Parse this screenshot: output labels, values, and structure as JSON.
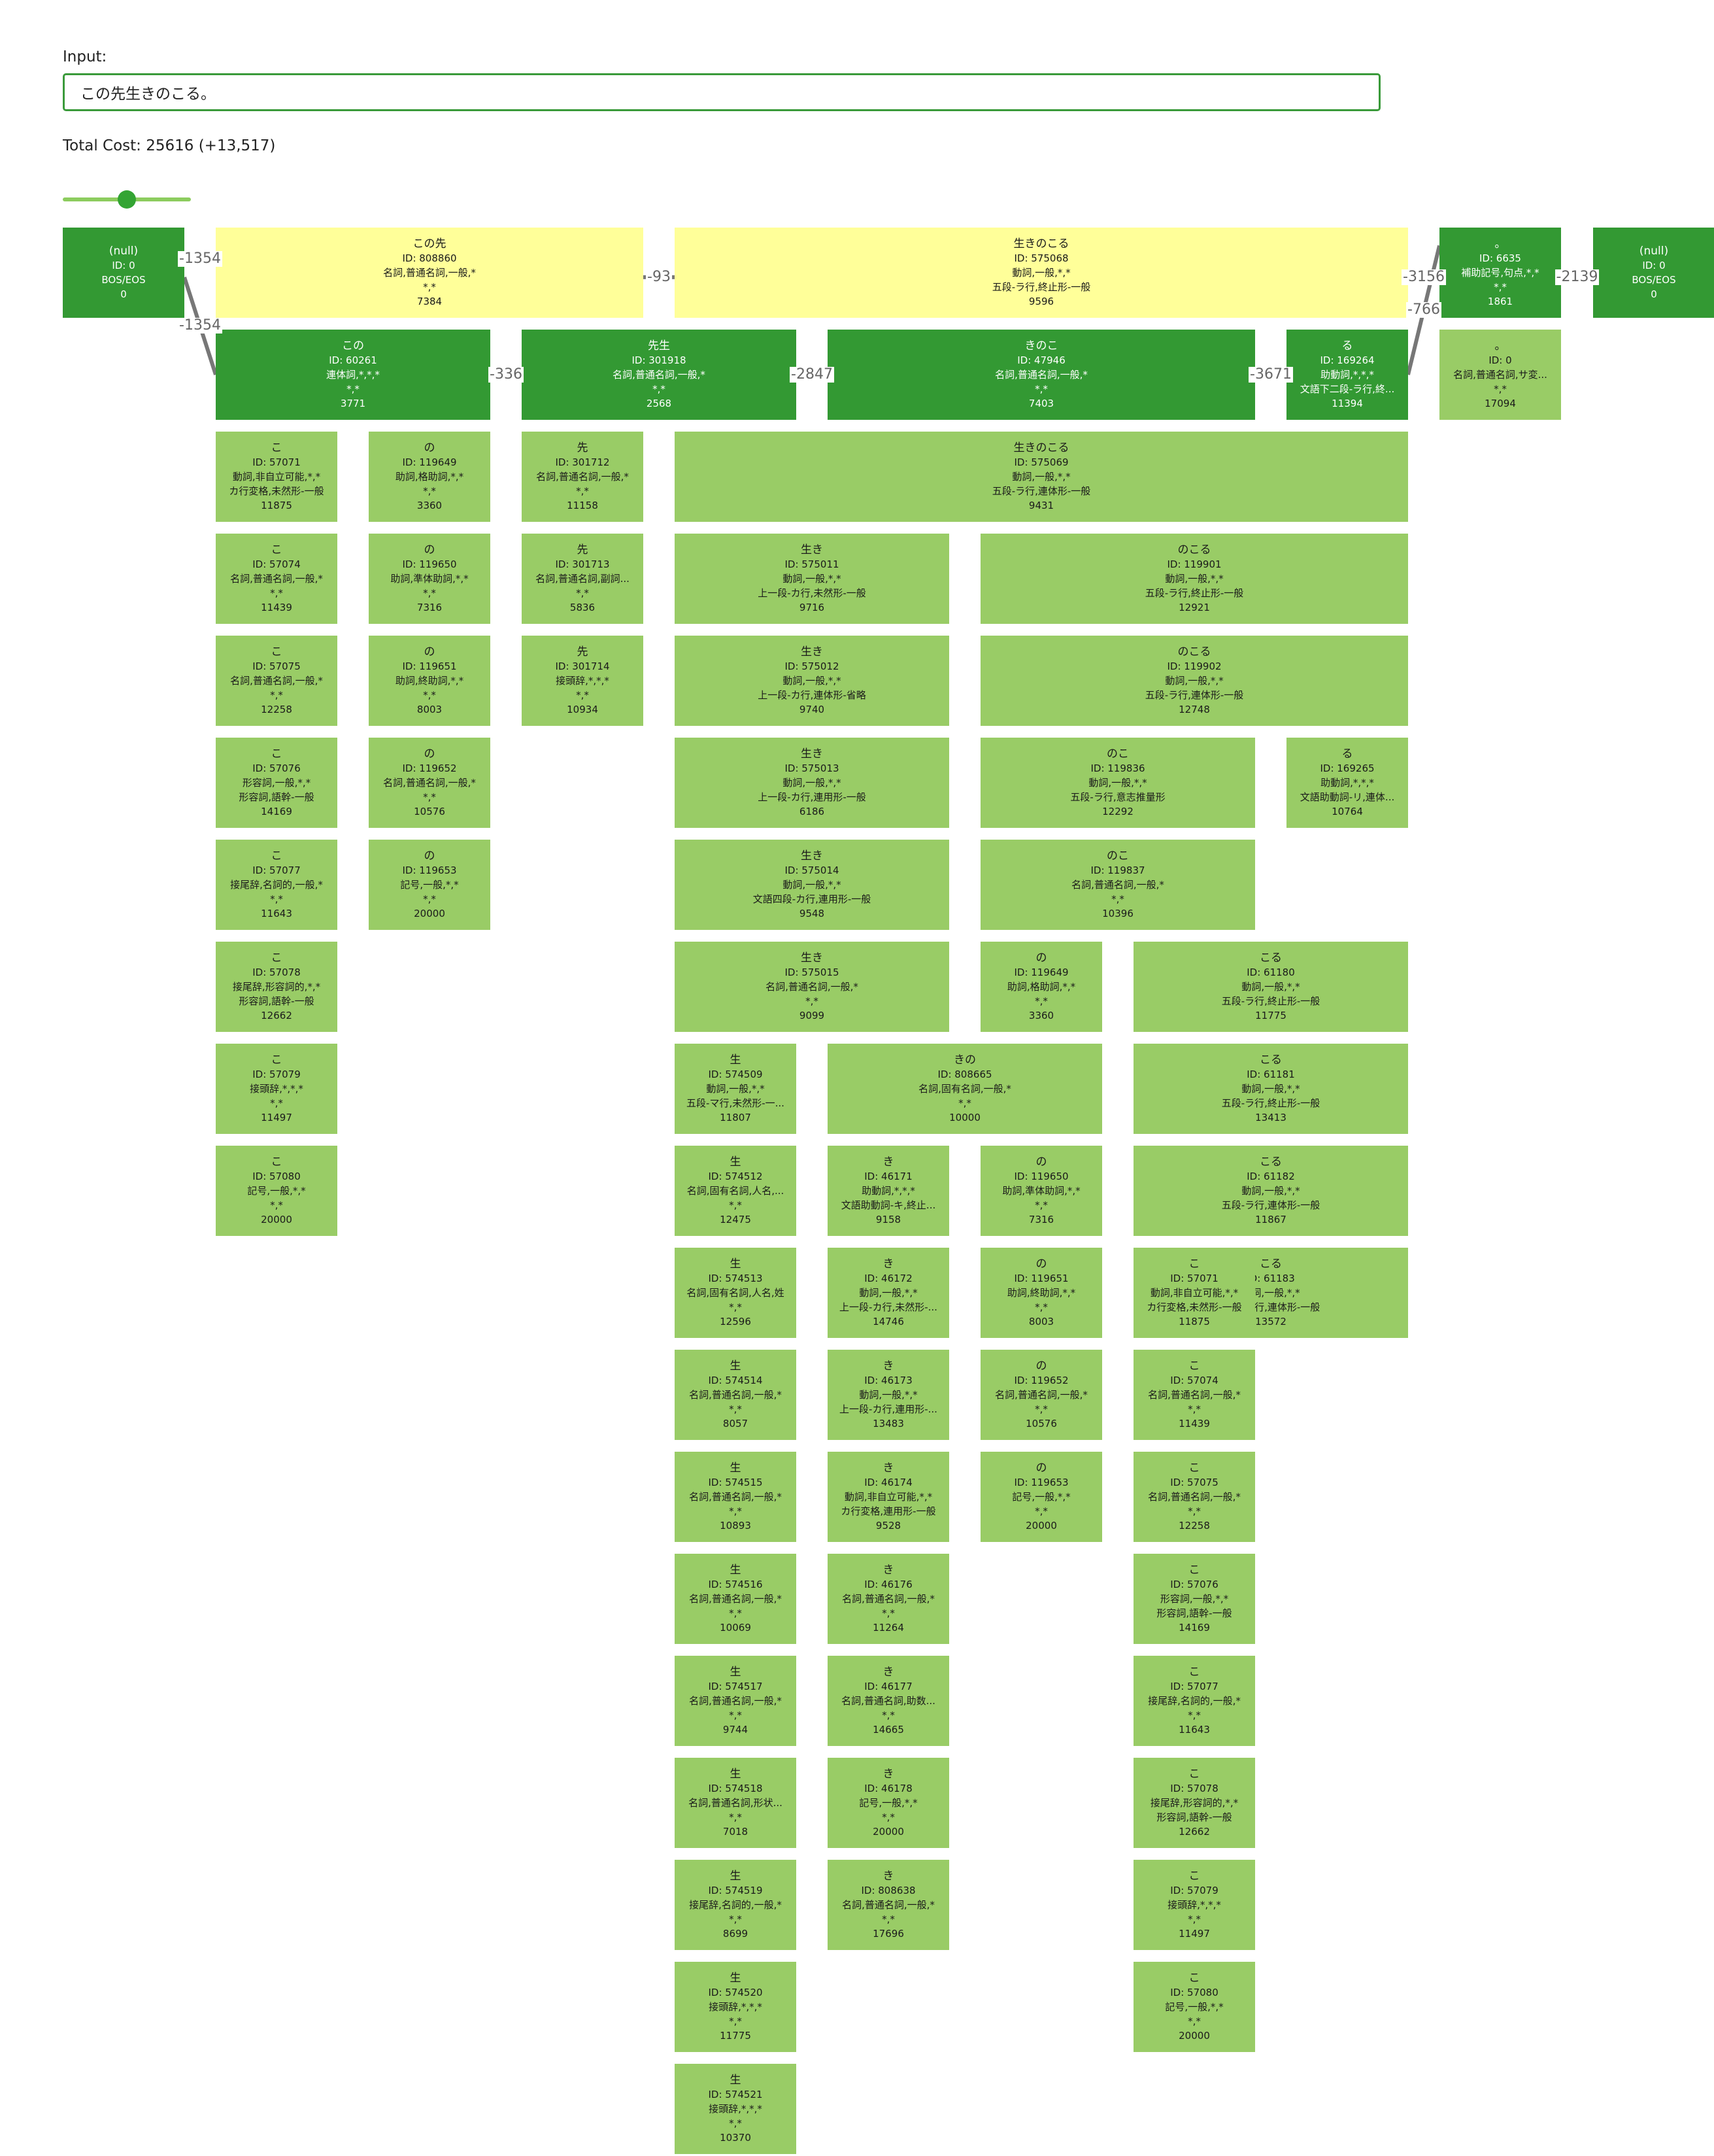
{
  "input": {
    "label": "Input:",
    "value": "この先生きのこる。"
  },
  "total_cost": "Total Cost: 25616 (+13,517)",
  "slider": {
    "value": 0.5
  },
  "colors": {
    "best_path": "#339933",
    "alternative": "#99cc66",
    "nbest": "#ffff99",
    "edge": "#777777"
  },
  "edge_labels": {
    "bos_kono_saki": "-1354",
    "bos_kono": "-1354",
    "kono_sensei": "-336",
    "sensei_kinoko": "-2847",
    "kinoko_ru": "-3671",
    "konosaki_ikinokoru": "-93",
    "ikinokoru_period": "-3156",
    "ru_period": "-766",
    "period_eos": "-2139"
  },
  "nodes": {
    "bos": {
      "surface": "(null)",
      "id": "ID: 0",
      "pos": "BOS/EOS",
      "extra": "",
      "cost": "0"
    },
    "eos": {
      "surface": "(null)",
      "id": "ID: 0",
      "pos": "BOS/EOS",
      "extra": "",
      "cost": "0"
    },
    "konosaki": {
      "surface": "この先",
      "id": "ID: 808860",
      "pos": "名詞,普通名詞,一般,*",
      "extra": "*,*",
      "cost": "7384"
    },
    "ikinokoru_top": {
      "surface": "生きのこる",
      "id": "ID: 575068",
      "pos": "動詞,一般,*,*",
      "extra": "五段-ラ行,終止形-一般",
      "cost": "9596"
    },
    "period": {
      "surface": "。",
      "id": "ID: 6635",
      "pos": "補助記号,句点,*,*",
      "extra": "*,*",
      "cost": "1861"
    },
    "period2": {
      "surface": "。",
      "id": "ID: 0",
      "pos": "名詞,普通名詞,サ変...",
      "extra": "*,*",
      "cost": "17094"
    },
    "kono": {
      "surface": "この",
      "id": "ID: 60261",
      "pos": "連体詞,*,*,*",
      "extra": "*,*",
      "cost": "3771"
    },
    "sensei": {
      "surface": "先生",
      "id": "ID: 301918",
      "pos": "名詞,普通名詞,一般,*",
      "extra": "*,*",
      "cost": "2568"
    },
    "kinoko": {
      "surface": "きのこ",
      "id": "ID: 47946",
      "pos": "名詞,普通名詞,一般,*",
      "extra": "*,*",
      "cost": "7403"
    },
    "ru": {
      "surface": "る",
      "id": "ID: 169264",
      "pos": "助動詞,*,*,*",
      "extra": "文語下二段-ラ行,終...",
      "cost": "11394"
    },
    "ko1": {
      "surface": "こ",
      "id": "ID: 57071",
      "pos": "動詞,非自立可能,*,*",
      "extra": "カ行変格,未然形-一般",
      "cost": "11875"
    },
    "ko2": {
      "surface": "こ",
      "id": "ID: 57074",
      "pos": "名詞,普通名詞,一般,*",
      "extra": "*,*",
      "cost": "11439"
    },
    "ko3": {
      "surface": "こ",
      "id": "ID: 57075",
      "pos": "名詞,普通名詞,一般,*",
      "extra": "*,*",
      "cost": "12258"
    },
    "ko4": {
      "surface": "こ",
      "id": "ID: 57076",
      "pos": "形容詞,一般,*,*",
      "extra": "形容詞,語幹-一般",
      "cost": "14169"
    },
    "ko5": {
      "surface": "こ",
      "id": "ID: 57077",
      "pos": "接尾辞,名詞的,一般,*",
      "extra": "*,*",
      "cost": "11643"
    },
    "ko6": {
      "surface": "こ",
      "id": "ID: 57078",
      "pos": "接尾辞,形容詞的,*,*",
      "extra": "形容詞,語幹-一般",
      "cost": "12662"
    },
    "ko7": {
      "surface": "こ",
      "id": "ID: 57079",
      "pos": "接頭辞,*,*,*",
      "extra": "*,*",
      "cost": "11497"
    },
    "ko8": {
      "surface": "こ",
      "id": "ID: 57080",
      "pos": "記号,一般,*,*",
      "extra": "*,*",
      "cost": "20000"
    },
    "no1": {
      "surface": "の",
      "id": "ID: 119649",
      "pos": "助詞,格助詞,*,*",
      "extra": "*,*",
      "cost": "3360"
    },
    "no2": {
      "surface": "の",
      "id": "ID: 119650",
      "pos": "助詞,準体助詞,*,*",
      "extra": "*,*",
      "cost": "7316"
    },
    "no3": {
      "surface": "の",
      "id": "ID: 119651",
      "pos": "助詞,終助詞,*,*",
      "extra": "*,*",
      "cost": "8003"
    },
    "no4": {
      "surface": "の",
      "id": "ID: 119652",
      "pos": "名詞,普通名詞,一般,*",
      "extra": "*,*",
      "cost": "10576"
    },
    "no5": {
      "surface": "の",
      "id": "ID: 119653",
      "pos": "記号,一般,*,*",
      "extra": "*,*",
      "cost": "20000"
    },
    "saki1": {
      "surface": "先",
      "id": "ID: 301712",
      "pos": "名詞,普通名詞,一般,*",
      "extra": "*,*",
      "cost": "11158"
    },
    "saki2": {
      "surface": "先",
      "id": "ID: 301713",
      "pos": "名詞,普通名詞,副詞...",
      "extra": "*,*",
      "cost": "5836"
    },
    "saki3": {
      "surface": "先",
      "id": "ID: 301714",
      "pos": "接頭辞,*,*,*",
      "extra": "*,*",
      "cost": "10934"
    },
    "ikinokoru2": {
      "surface": "生きのこる",
      "id": "ID: 575069",
      "pos": "動詞,一般,*,*",
      "extra": "五段-ラ行,連体形-一般",
      "cost": "9431"
    },
    "iki1": {
      "surface": "生き",
      "id": "ID: 575011",
      "pos": "動詞,一般,*,*",
      "extra": "上一段-カ行,未然形-一般",
      "cost": "9716"
    },
    "iki2": {
      "surface": "生き",
      "id": "ID: 575012",
      "pos": "動詞,一般,*,*",
      "extra": "上一段-カ行,連体形-省略",
      "cost": "9740"
    },
    "iki3": {
      "surface": "生き",
      "id": "ID: 575013",
      "pos": "動詞,一般,*,*",
      "extra": "上一段-カ行,連用形-一般",
      "cost": "6186"
    },
    "iki4": {
      "surface": "生き",
      "id": "ID: 575014",
      "pos": "動詞,一般,*,*",
      "extra": "文語四段-カ行,連用形-一般",
      "cost": "9548"
    },
    "iki5": {
      "surface": "生き",
      "id": "ID: 575015",
      "pos": "名詞,普通名詞,一般,*",
      "extra": "*,*",
      "cost": "9099"
    },
    "nokoru1": {
      "surface": "のこる",
      "id": "ID: 119901",
      "pos": "動詞,一般,*,*",
      "extra": "五段-ラ行,終止形-一般",
      "cost": "12921"
    },
    "nokoru2": {
      "surface": "のこる",
      "id": "ID: 119902",
      "pos": "動詞,一般,*,*",
      "extra": "五段-ラ行,連体形-一般",
      "cost": "12748"
    },
    "noko1": {
      "surface": "のこ",
      "id": "ID: 119836",
      "pos": "動詞,一般,*,*",
      "extra": "五段-ラ行,意志推量形",
      "cost": "12292"
    },
    "noko2": {
      "surface": "のこ",
      "id": "ID: 119837",
      "pos": "名詞,普通名詞,一般,*",
      "extra": "*,*",
      "cost": "10396"
    },
    "ru2": {
      "surface": "る",
      "id": "ID: 169265",
      "pos": "助動詞,*,*,*",
      "extra": "文語助動詞-リ,連体...",
      "cost": "10764"
    },
    "nob1": {
      "surface": "の",
      "id": "ID: 119649",
      "pos": "助詞,格助詞,*,*",
      "extra": "*,*",
      "cost": "3360"
    },
    "nob2": {
      "surface": "の",
      "id": "ID: 119650",
      "pos": "助詞,準体助詞,*,*",
      "extra": "*,*",
      "cost": "7316"
    },
    "nob3": {
      "surface": "の",
      "id": "ID: 119651",
      "pos": "助詞,終助詞,*,*",
      "extra": "*,*",
      "cost": "8003"
    },
    "nob4": {
      "surface": "の",
      "id": "ID: 119652",
      "pos": "名詞,普通名詞,一般,*",
      "extra": "*,*",
      "cost": "10576"
    },
    "nob5": {
      "surface": "の",
      "id": "ID: 119653",
      "pos": "記号,一般,*,*",
      "extra": "*,*",
      "cost": "20000"
    },
    "koru1": {
      "surface": "こる",
      "id": "ID: 61180",
      "pos": "動詞,一般,*,*",
      "extra": "五段-ラ行,終止形-一般",
      "cost": "11775"
    },
    "koru2": {
      "surface": "こる",
      "id": "ID: 61181",
      "pos": "動詞,一般,*,*",
      "extra": "五段-ラ行,終止形-一般",
      "cost": "13413"
    },
    "koru3": {
      "surface": "こる",
      "id": "ID: 61182",
      "pos": "動詞,一般,*,*",
      "extra": "五段-ラ行,連体形-一般",
      "cost": "11867"
    },
    "koru4": {
      "surface": "こる",
      "id": "ID: 61183",
      "pos": "動詞,一般,*,*",
      "extra": "五段-ラ行,連体形-一般",
      "cost": "13572"
    },
    "kob1": {
      "surface": "こ",
      "id": "ID: 57071",
      "pos": "動詞,非自立可能,*,*",
      "extra": "カ行変格,未然形-一般",
      "cost": "11875"
    },
    "kob2": {
      "surface": "こ",
      "id": "ID: 57074",
      "pos": "名詞,普通名詞,一般,*",
      "extra": "*,*",
      "cost": "11439"
    },
    "kob3": {
      "surface": "こ",
      "id": "ID: 57075",
      "pos": "名詞,普通名詞,一般,*",
      "extra": "*,*",
      "cost": "12258"
    },
    "kob4": {
      "surface": "こ",
      "id": "ID: 57076",
      "pos": "形容詞,一般,*,*",
      "extra": "形容詞,語幹-一般",
      "cost": "14169"
    },
    "kob5": {
      "surface": "こ",
      "id": "ID: 57077",
      "pos": "接尾辞,名詞的,一般,*",
      "extra": "*,*",
      "cost": "11643"
    },
    "kob6": {
      "surface": "こ",
      "id": "ID: 57078",
      "pos": "接尾辞,形容詞的,*,*",
      "extra": "形容詞,語幹-一般",
      "cost": "12662"
    },
    "kob7": {
      "surface": "こ",
      "id": "ID: 57079",
      "pos": "接頭辞,*,*,*",
      "extra": "*,*",
      "cost": "11497"
    },
    "kob8": {
      "surface": "こ",
      "id": "ID: 57080",
      "pos": "記号,一般,*,*",
      "extra": "*,*",
      "cost": "20000"
    },
    "sei1": {
      "surface": "生",
      "id": "ID: 574509",
      "pos": "動詞,一般,*,*",
      "extra": "五段-マ行,未然形-一...",
      "cost": "11807"
    },
    "sei2": {
      "surface": "生",
      "id": "ID: 574512",
      "pos": "名詞,固有名詞,人名,...",
      "extra": "*,*",
      "cost": "12475"
    },
    "sei3": {
      "surface": "生",
      "id": "ID: 574513",
      "pos": "名詞,固有名詞,人名,姓",
      "extra": "*,*",
      "cost": "12596"
    },
    "sei4": {
      "surface": "生",
      "id": "ID: 574514",
      "pos": "名詞,普通名詞,一般,*",
      "extra": "*,*",
      "cost": "8057"
    },
    "sei5": {
      "surface": "生",
      "id": "ID: 574515",
      "pos": "名詞,普通名詞,一般,*",
      "extra": "*,*",
      "cost": "10893"
    },
    "sei6": {
      "surface": "生",
      "id": "ID: 574516",
      "pos": "名詞,普通名詞,一般,*",
      "extra": "*,*",
      "cost": "10069"
    },
    "sei7": {
      "surface": "生",
      "id": "ID: 574517",
      "pos": "名詞,普通名詞,一般,*",
      "extra": "*,*",
      "cost": "9744"
    },
    "sei8": {
      "surface": "生",
      "id": "ID: 574518",
      "pos": "名詞,普通名詞,形状...",
      "extra": "*,*",
      "cost": "7018"
    },
    "sei9": {
      "surface": "生",
      "id": "ID: 574519",
      "pos": "接尾辞,名詞的,一般,*",
      "extra": "*,*",
      "cost": "8699"
    },
    "sei10": {
      "surface": "生",
      "id": "ID: 574520",
      "pos": "接頭辞,*,*,*",
      "extra": "*,*",
      "cost": "11775"
    },
    "sei11": {
      "surface": "生",
      "id": "ID: 574521",
      "pos": "接頭辞,*,*,*",
      "extra": "*,*",
      "cost": "10370"
    },
    "kino": {
      "surface": "きの",
      "id": "ID: 808665",
      "pos": "名詞,固有名詞,一般,*",
      "extra": "*,*",
      "cost": "10000"
    },
    "ki1": {
      "surface": "き",
      "id": "ID: 46171",
      "pos": "助動詞,*,*,*",
      "extra": "文語助動詞-キ,終止...",
      "cost": "9158"
    },
    "ki2": {
      "surface": "き",
      "id": "ID: 46172",
      "pos": "動詞,一般,*,*",
      "extra": "上一段-カ行,未然形-...",
      "cost": "14746"
    },
    "ki3": {
      "surface": "き",
      "id": "ID: 46173",
      "pos": "動詞,一般,*,*",
      "extra": "上一段-カ行,連用形-...",
      "cost": "13483"
    },
    "ki4": {
      "surface": "き",
      "id": "ID: 46174",
      "pos": "動詞,非自立可能,*,*",
      "extra": "カ行変格,連用形-一般",
      "cost": "9528"
    },
    "ki5": {
      "surface": "き",
      "id": "ID: 46176",
      "pos": "名詞,普通名詞,一般,*",
      "extra": "*,*",
      "cost": "11264"
    },
    "ki6": {
      "surface": "き",
      "id": "ID: 46177",
      "pos": "名詞,普通名詞,助数...",
      "extra": "*,*",
      "cost": "14665"
    },
    "ki7": {
      "surface": "き",
      "id": "ID: 46178",
      "pos": "記号,一般,*,*",
      "extra": "*,*",
      "cost": "20000"
    },
    "ki8": {
      "surface": "き",
      "id": "ID: 808638",
      "pos": "名詞,普通名詞,一般,*",
      "extra": "*,*",
      "cost": "17696"
    }
  }
}
